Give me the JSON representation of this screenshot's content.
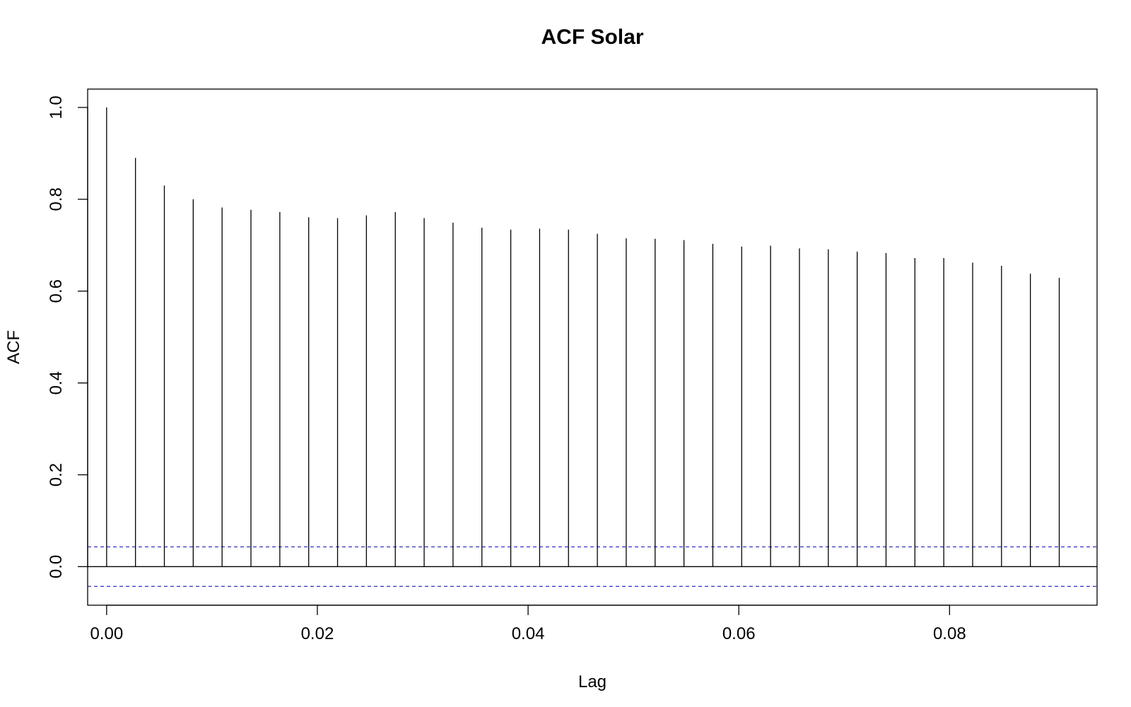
{
  "chart_data": {
    "type": "bar",
    "title": "ACF Solar",
    "xlabel": "Lag",
    "ylabel": "ACF",
    "xlim": [
      -0.0018,
      0.094
    ],
    "ylim": [
      -0.084,
      1.04
    ],
    "x_ticks": [
      0.0,
      0.02,
      0.04,
      0.06,
      0.08
    ],
    "x_tick_labels": [
      "0.00",
      "0.02",
      "0.04",
      "0.06",
      "0.08"
    ],
    "y_ticks": [
      0.0,
      0.2,
      0.4,
      0.6,
      0.8,
      1.0
    ],
    "y_tick_labels": [
      "0.0",
      "0.2",
      "0.4",
      "0.6",
      "0.8",
      "1.0"
    ],
    "lag_step": 0.0027397,
    "acf": [
      1.0,
      0.89,
      0.83,
      0.8,
      0.782,
      0.777,
      0.772,
      0.761,
      0.759,
      0.765,
      0.772,
      0.759,
      0.749,
      0.738,
      0.734,
      0.736,
      0.734,
      0.725,
      0.715,
      0.714,
      0.711,
      0.703,
      0.697,
      0.699,
      0.693,
      0.691,
      0.686,
      0.683,
      0.672,
      0.672,
      0.662,
      0.655,
      0.638,
      0.629
    ],
    "confidence_bound": 0.043,
    "colors": {
      "bars": "#000000",
      "zero_line": "#000000",
      "confidence": "#3333cc",
      "frame": "#000000"
    }
  }
}
